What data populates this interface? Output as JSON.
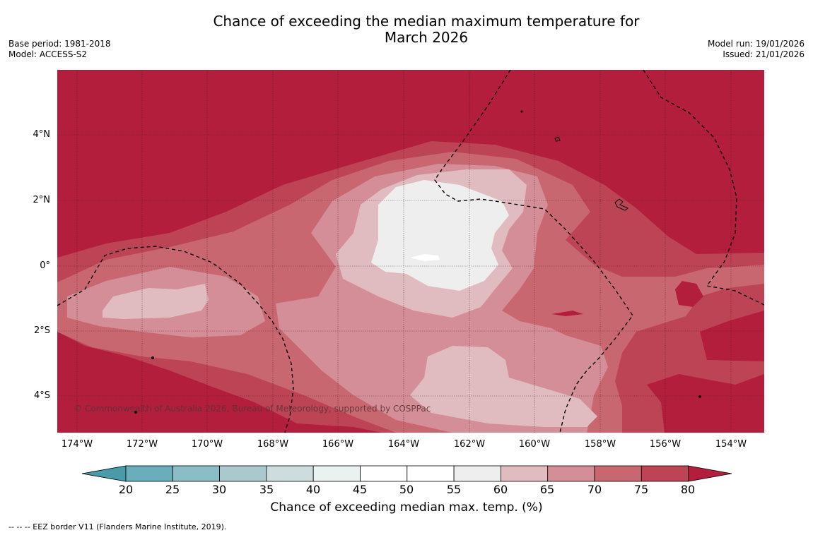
{
  "title": {
    "line1": "Chance of exceeding the median maximum temperature for",
    "line2": "March 2026"
  },
  "meta_left": {
    "base_period": "Base period: 1981-2018",
    "model": "Model: ACCESS-S2"
  },
  "meta_right": {
    "model_run": "Model run: 19/01/2026",
    "issued": "Issued: 21/01/2026"
  },
  "map": {
    "lat_labels": [
      "4°N",
      "2°N",
      "0°",
      "2°S",
      "4°S"
    ],
    "lon_labels": [
      "174°W",
      "172°W",
      "170°W",
      "168°W",
      "166°W",
      "164°W",
      "162°W",
      "160°W",
      "158°W",
      "156°W",
      "154°W"
    ],
    "copyright": "© Commonwealth of Australia 2026, Bureau of Meteorology, supported by COSPPac"
  },
  "colorbar": {
    "ticks": [
      "20",
      "25",
      "30",
      "35",
      "40",
      "45",
      "50",
      "55",
      "60",
      "65",
      "70",
      "75",
      "80"
    ],
    "label": "Chance of exceeding median max. temp. (%)",
    "colors": {
      "below20": "#4a9ba8",
      "c20_25": "#6aaebb",
      "c25_30": "#8bbdc6",
      "c30_35": "#aac9ce",
      "c35_40": "#cddcdd",
      "c40_45": "#eaf1f1",
      "c45_50": "#ffffff",
      "c50_55": "#ffffff",
      "c55_60": "#eeeeee",
      "c60_65": "#e0bcc0",
      "c65_70": "#d48e97",
      "c70_75": "#c96771",
      "c75_80": "#bd4454",
      "above80": "#b21e3b"
    }
  },
  "footnote": "--  --  -- EEZ border V11 (Flanders Marine Institute, 2019)."
}
